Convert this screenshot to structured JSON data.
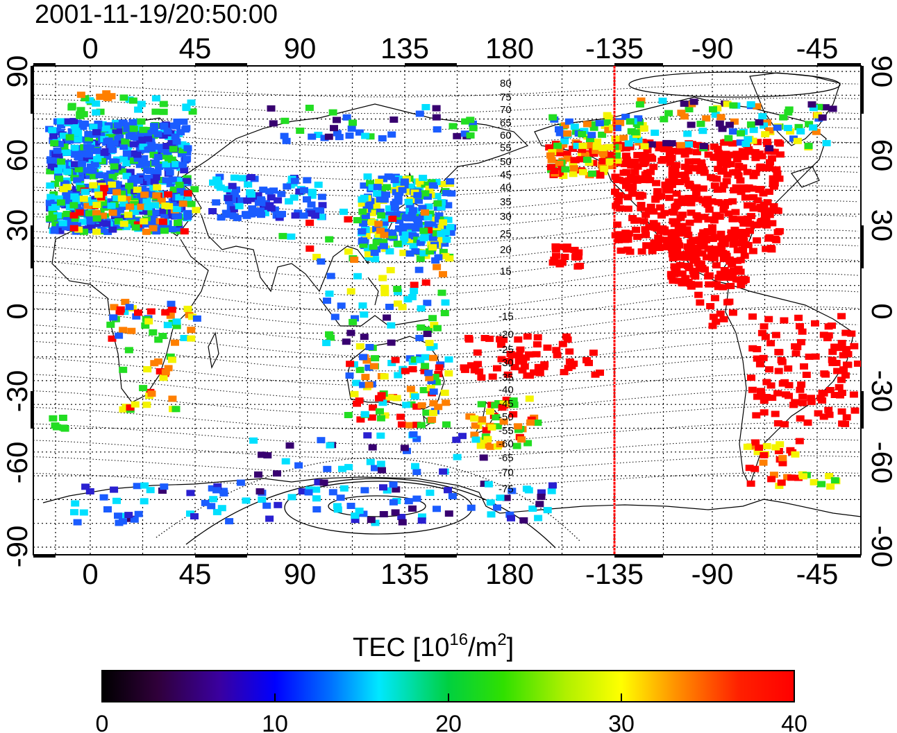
{
  "title": "2001-11-19/20:50:00",
  "map": {
    "lon_ticks": [
      "0",
      "45",
      "90",
      "135",
      "180",
      "-135",
      "-90",
      "-45"
    ],
    "lat_ticks": [
      "90",
      "60",
      "30",
      "0",
      "-30",
      "-60",
      "-90"
    ],
    "meridian_line_lon": "-135",
    "meridian_line_color": "#ff0000"
  },
  "contour_labels": [
    "80",
    "75",
    "70",
    "65",
    "60",
    "55",
    "50",
    "45",
    "40",
    "35",
    "30",
    "25",
    "20",
    "15",
    "-15",
    "-20",
    "-25",
    "-30",
    "-35",
    "-40",
    "-45",
    "-50",
    "-55",
    "-60",
    "-65",
    "-70",
    "-75"
  ],
  "colorbar": {
    "label_main": "TEC  [10",
    "label_sup1": "16",
    "label_mid": "/m",
    "label_sup2": "2",
    "label_end": "]",
    "ticks": [
      "0",
      "10",
      "20",
      "30",
      "40"
    ],
    "range": [
      0,
      40
    ]
  },
  "palette": {
    "red": "#ff0000",
    "orange": "#ff7f00",
    "yellow": "#f4f400",
    "green": "#22dd22",
    "cyan": "#00e0ff",
    "blue": "#1a5cff",
    "darkblue": "#2a20d0",
    "purple": "#380070"
  }
}
